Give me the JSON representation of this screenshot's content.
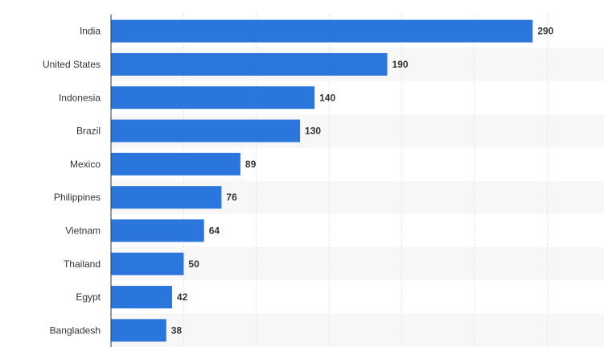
{
  "chart_data": {
    "type": "bar",
    "orientation": "horizontal",
    "categories": [
      "India",
      "United States",
      "Indonesia",
      "Brazil",
      "Mexico",
      "Philippines",
      "Vietnam",
      "Thailand",
      "Egypt",
      "Bangladesh"
    ],
    "values": [
      290,
      190,
      140,
      130,
      89,
      76,
      64,
      50,
      42,
      38
    ],
    "xlim": [
      0,
      340
    ],
    "grid": true,
    "colors": {
      "bar": "#2a76dd",
      "grid": "#e3e3e3",
      "band": "#f7f7f7",
      "axis": "#333333",
      "text": "#333333"
    }
  }
}
